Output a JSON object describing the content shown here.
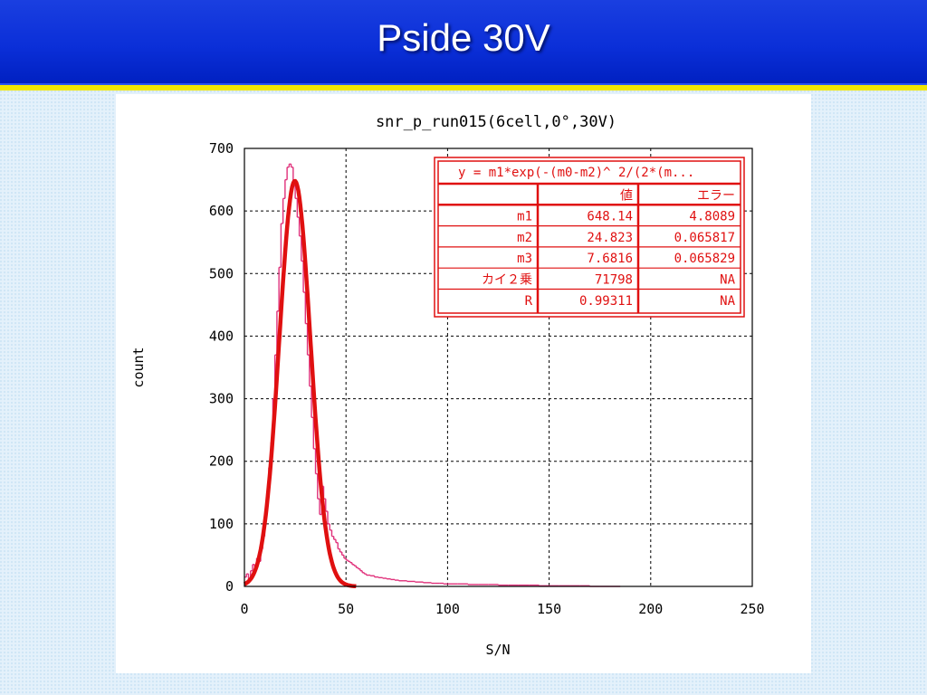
{
  "slide": {
    "title": "Pside 30V"
  },
  "chart_data": {
    "type": "histogram",
    "title": "snr_p_run015(6cell,0°,30V)",
    "xlabel": "S/N",
    "ylabel": "count",
    "xlim": [
      0,
      250
    ],
    "ylim": [
      0,
      700
    ],
    "x_ticks": [
      "0",
      "50",
      "100",
      "150",
      "200",
      "250"
    ],
    "y_ticks": [
      "0",
      "100",
      "200",
      "300",
      "400",
      "500",
      "600",
      "700"
    ],
    "grid": true,
    "colors": {
      "histogram": "#e0307a",
      "fit": "#e01010",
      "frame": "#000000"
    },
    "histogram": {
      "x": [
        0,
        1,
        2,
        3,
        4,
        5,
        6,
        7,
        8,
        9,
        10,
        11,
        12,
        13,
        14,
        15,
        16,
        17,
        18,
        19,
        20,
        21,
        22,
        23,
        24,
        25,
        26,
        27,
        28,
        29,
        30,
        31,
        32,
        33,
        34,
        35,
        36,
        37,
        38,
        39,
        40,
        41,
        42,
        43,
        44,
        45,
        46,
        47,
        48,
        49,
        50,
        51,
        52,
        53,
        54,
        55,
        56,
        57,
        58,
        59,
        60,
        62,
        64,
        66,
        68,
        70,
        72,
        74,
        76,
        78,
        80,
        82,
        84,
        86,
        88,
        90,
        92,
        94,
        96,
        98,
        100,
        105,
        110,
        115,
        120,
        125,
        130,
        135,
        140,
        145,
        150,
        155,
        160,
        165,
        170,
        175,
        180
      ],
      "counts": [
        15,
        20,
        10,
        25,
        35,
        30,
        45,
        40,
        60,
        80,
        110,
        150,
        190,
        230,
        300,
        370,
        440,
        510,
        580,
        620,
        650,
        670,
        675,
        670,
        640,
        620,
        590,
        560,
        520,
        470,
        420,
        370,
        320,
        270,
        220,
        180,
        140,
        115,
        160,
        140,
        120,
        100,
        90,
        80,
        75,
        70,
        60,
        55,
        50,
        45,
        42,
        40,
        38,
        35,
        33,
        30,
        28,
        25,
        22,
        20,
        18,
        17,
        15,
        14,
        13,
        12,
        11,
        10,
        9,
        9,
        8,
        8,
        7,
        7,
        6,
        6,
        5,
        5,
        5,
        4,
        4,
        4,
        3,
        3,
        3,
        2,
        2,
        2,
        2,
        1,
        1,
        1,
        1,
        1,
        0,
        0,
        0
      ]
    },
    "fit": {
      "formula": "y = m1*exp(-(m0-m2)^ 2/(2*(m...",
      "m1": 648.14,
      "m2": 24.823,
      "m3": 7.6816
    },
    "fit_table": {
      "header": [
        "",
        "値",
        "エラー"
      ],
      "rows": [
        [
          "m1",
          "648.14",
          "4.8089"
        ],
        [
          "m2",
          "24.823",
          "0.065817"
        ],
        [
          "m3",
          "7.6816",
          "0.065829"
        ],
        [
          "カイ２乗",
          "71798",
          "NA"
        ],
        [
          "R",
          "0.99311",
          "NA"
        ]
      ]
    }
  }
}
